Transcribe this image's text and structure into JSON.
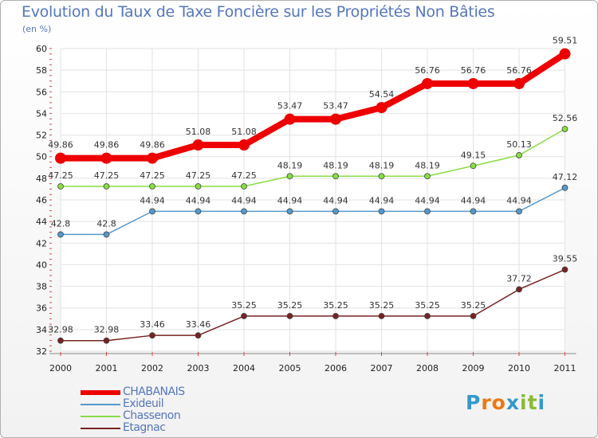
{
  "title": "Evolution du Taux de Taxe Foncière sur les Propriétés Non Bâties",
  "unit_label": "(en %)",
  "logo": {
    "text": "Proxiti",
    "letters": [
      "P",
      "r",
      "o",
      "x",
      "i",
      "t",
      "i"
    ],
    "colors": [
      "#3399cc",
      "#ee7711",
      "#ee7711",
      "#3399cc",
      "#88bb33",
      "#88bb33",
      "#3399cc"
    ]
  },
  "chart_data": {
    "type": "line",
    "x": [
      "2000",
      "2001",
      "2002",
      "2003",
      "2004",
      "2005",
      "2006",
      "2007",
      "2008",
      "2009",
      "2010",
      "2011"
    ],
    "ylim": [
      32,
      60
    ],
    "yticks": [
      32,
      34,
      36,
      38,
      40,
      42,
      44,
      46,
      48,
      50,
      52,
      54,
      56,
      58,
      60
    ],
    "grid": true,
    "legend_position": "bottom-left",
    "series": [
      {
        "name": "CHABANAIS",
        "color": "#ee0000",
        "width": 8,
        "marker": 7,
        "values": [
          49.86,
          49.86,
          49.86,
          51.08,
          51.08,
          53.47,
          53.47,
          54.54,
          56.76,
          56.76,
          56.76,
          59.51
        ],
        "labels": [
          "49.86",
          "49.86",
          "49.86",
          "51.08",
          "51.08",
          "53.47",
          "53.47",
          "54.54",
          "56.76",
          "56.76",
          "56.76",
          "59.51"
        ]
      },
      {
        "name": "Exideuil",
        "color": "#5599cc",
        "width": 1.5,
        "marker": 3.5,
        "values": [
          42.8,
          42.8,
          44.94,
          44.94,
          44.94,
          44.94,
          44.94,
          44.94,
          44.94,
          44.94,
          44.94,
          47.12
        ],
        "labels": [
          "42.8",
          "42.8",
          "44.94",
          "44.94",
          "44.94",
          "44.94",
          "44.94",
          "44.94",
          "44.94",
          "44.94",
          "44.94",
          "47.12"
        ]
      },
      {
        "name": "Chassenon",
        "color": "#88dd44",
        "width": 1.5,
        "marker": 3.5,
        "values": [
          47.25,
          47.25,
          47.25,
          47.25,
          47.25,
          48.19,
          48.19,
          48.19,
          48.19,
          49.15,
          50.13,
          52.56
        ],
        "labels": [
          "47.25",
          "47.25",
          "47.25",
          "47.25",
          "47.25",
          "48.19",
          "48.19",
          "48.19",
          "48.19",
          "49.15",
          "50.13",
          "52.56"
        ]
      },
      {
        "name": "Etagnac",
        "color": "#772222",
        "width": 1.5,
        "marker": 3.5,
        "values": [
          32.98,
          32.98,
          33.46,
          33.46,
          35.25,
          35.25,
          35.25,
          35.25,
          35.25,
          35.25,
          37.72,
          39.55
        ],
        "labels": [
          "32.98",
          "32.98",
          "33.46",
          "33.46",
          "35.25",
          "35.25",
          "35.25",
          "35.25",
          "35.25",
          "35.25",
          "37.72",
          "39.55"
        ]
      }
    ]
  }
}
